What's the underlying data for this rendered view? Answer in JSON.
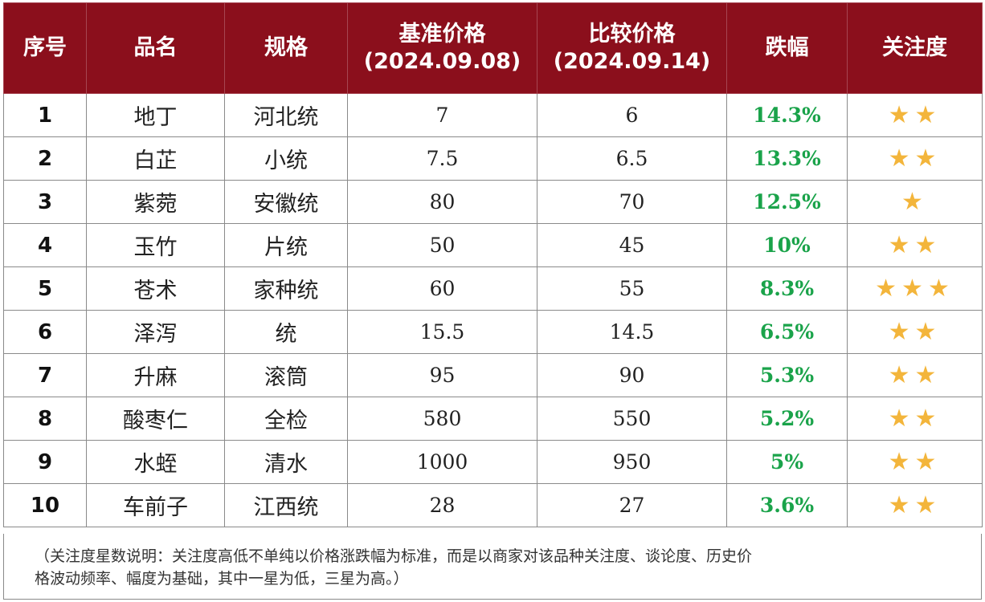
{
  "table": {
    "headers": [
      {
        "line1": "序号",
        "line2": ""
      },
      {
        "line1": "品名",
        "line2": ""
      },
      {
        "line1": "规格",
        "line2": ""
      },
      {
        "line1": "基准价格",
        "line2": "(2024.09.08)"
      },
      {
        "line1": "比较价格",
        "line2": "(2024.09.14)"
      },
      {
        "line1": "跌幅",
        "line2": ""
      },
      {
        "line1": "关注度",
        "line2": ""
      }
    ],
    "rows": [
      {
        "no": "1",
        "name": "地丁",
        "spec": "河北统",
        "base": "7",
        "compare": "6",
        "drop": "14.3%",
        "stars": 2
      },
      {
        "no": "2",
        "name": "白芷",
        "spec": "小统",
        "base": "7.5",
        "compare": "6.5",
        "drop": "13.3%",
        "stars": 2
      },
      {
        "no": "3",
        "name": "紫菀",
        "spec": "安徽统",
        "base": "80",
        "compare": "70",
        "drop": "12.5%",
        "stars": 1
      },
      {
        "no": "4",
        "name": "玉竹",
        "spec": "片统",
        "base": "50",
        "compare": "45",
        "drop": "10%",
        "stars": 2
      },
      {
        "no": "5",
        "name": "苍术",
        "spec": "家种统",
        "base": "60",
        "compare": "55",
        "drop": "8.3%",
        "stars": 3
      },
      {
        "no": "6",
        "name": "泽泻",
        "spec": "统",
        "base": "15.5",
        "compare": "14.5",
        "drop": "6.5%",
        "stars": 2
      },
      {
        "no": "7",
        "name": "升麻",
        "spec": "滚筒",
        "base": "95",
        "compare": "90",
        "drop": "5.3%",
        "stars": 2
      },
      {
        "no": "8",
        "name": "酸枣仁",
        "spec": "全检",
        "base": "580",
        "compare": "550",
        "drop": "5.2%",
        "stars": 2
      },
      {
        "no": "9",
        "name": "水蛭",
        "spec": "清水",
        "base": "1000",
        "compare": "950",
        "drop": "5%",
        "stars": 2
      },
      {
        "no": "10",
        "name": "车前子",
        "spec": "江西统",
        "base": "28",
        "compare": "27",
        "drop": "3.6%",
        "stars": 2
      }
    ]
  },
  "note": {
    "line1": "（关注度星数说明：关注度高低不单纯以价格涨跌幅为标准，而是以商家对该品种关注度、谈论度、历史价",
    "line2": "格波动频率、幅度为基础，其中一星为低，三星为高。）"
  },
  "colors": {
    "header_bg": "#8b0f1c",
    "drop_text": "#1aa34a",
    "star": "#f3b53b"
  },
  "icons": {
    "star": "star-icon"
  }
}
